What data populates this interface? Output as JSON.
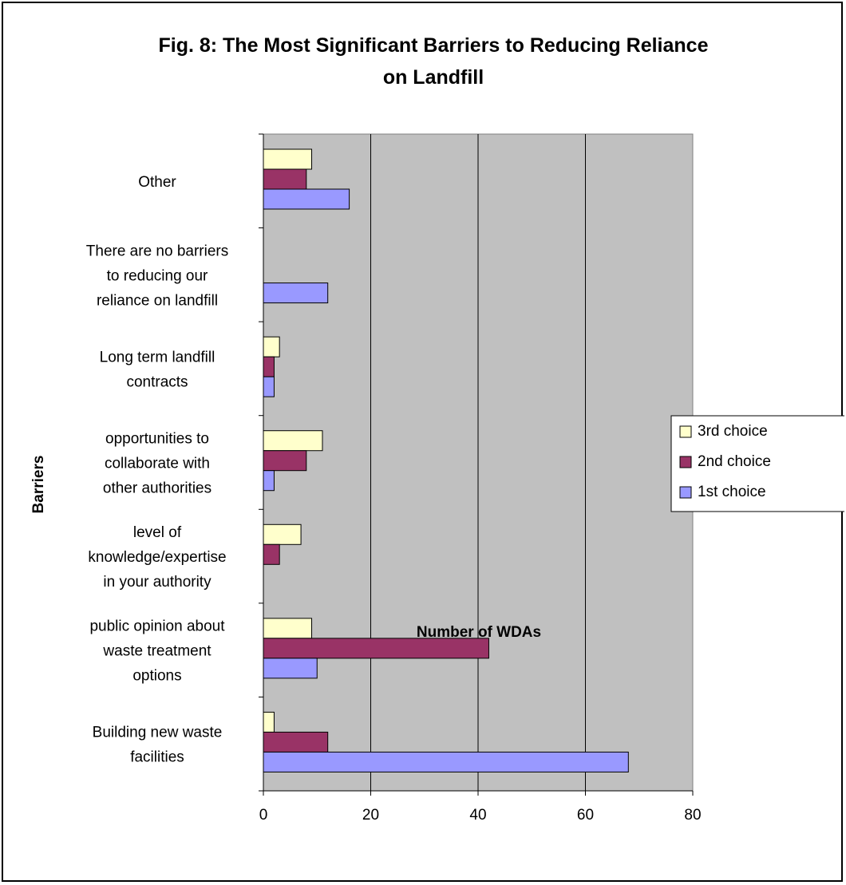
{
  "chart_data": {
    "type": "bar",
    "orientation": "horizontal",
    "title": "Fig. 8: The Most Significant Barriers to Reducing Reliance on Landfill",
    "title_lines": [
      "Fig. 8: The Most Significant Barriers to Reducing Reliance",
      "on Landfill"
    ],
    "xlabel": "Number of WDAs",
    "ylabel": "Barriers",
    "xlim": [
      0,
      80
    ],
    "xticks": [
      0,
      20,
      40,
      60,
      80
    ],
    "grid": "vertical major gridlines",
    "legend_position": "right",
    "plot_background": "#c0c0c0",
    "categories": [
      "Other",
      "There are no barriers to reducing our reliance on landfill",
      "Long term landfill contracts",
      "opportunities to collaborate with other authorities",
      "level of knowledge/expertise in your authority",
      "public opinion about waste treatment options",
      "Building new waste facilities"
    ],
    "category_lines": [
      [
        "Other"
      ],
      [
        "There are no barriers",
        "to reducing our",
        "reliance on landfill"
      ],
      [
        "Long term landfill",
        "contracts"
      ],
      [
        "opportunities to",
        "collaborate with",
        "other authorities"
      ],
      [
        "level of",
        "knowledge/expertise",
        "in your authority"
      ],
      [
        "public opinion about",
        "waste treatment",
        "options"
      ],
      [
        "Building new waste",
        "facilities"
      ]
    ],
    "series": [
      {
        "name": "3rd choice",
        "color": "#ffffcc",
        "values": [
          9,
          0,
          3,
          11,
          7,
          9,
          2
        ]
      },
      {
        "name": "2nd choice",
        "color": "#993366",
        "values": [
          8,
          0,
          2,
          8,
          3,
          42,
          12
        ]
      },
      {
        "name": "1st choice",
        "color": "#9999ff",
        "values": [
          16,
          12,
          2,
          2,
          0,
          10,
          68
        ]
      }
    ]
  }
}
